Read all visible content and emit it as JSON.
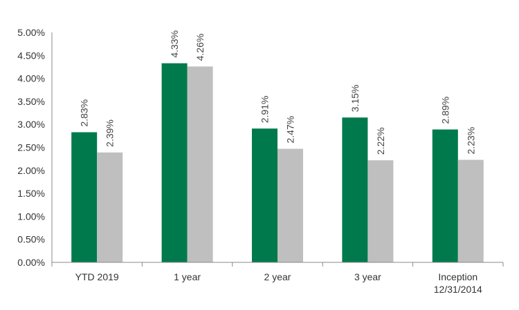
{
  "chart_data": {
    "type": "bar",
    "categories": [
      [
        "YTD 2019"
      ],
      [
        "1 year"
      ],
      [
        "2 year"
      ],
      [
        "3 year"
      ],
      [
        "Inception",
        "12/31/2014"
      ]
    ],
    "series": [
      {
        "values": [
          2.83,
          4.33,
          2.91,
          3.15,
          2.89
        ],
        "labels": [
          "2.83%",
          "4.33%",
          "2.91%",
          "3.15%",
          "2.89%"
        ],
        "color": "#007A4C"
      },
      {
        "values": [
          2.39,
          4.26,
          2.47,
          2.22,
          2.23
        ],
        "labels": [
          "2.39%",
          "4.26%",
          "2.47%",
          "2.22%",
          "2.23%"
        ],
        "color": "#BFBFBF"
      }
    ],
    "ylim": [
      0,
      5
    ],
    "ytick_values": [
      0,
      0.5,
      1,
      1.5,
      2,
      2.5,
      3,
      3.5,
      4,
      4.5,
      5
    ],
    "ytick_labels": [
      "0.00%",
      "0.50%",
      "1.00%",
      "1.50%",
      "2.00%",
      "2.50%",
      "3.00%",
      "3.50%",
      "4.00%",
      "4.50%",
      "5.00%"
    ],
    "grid": false,
    "legend": "none"
  }
}
